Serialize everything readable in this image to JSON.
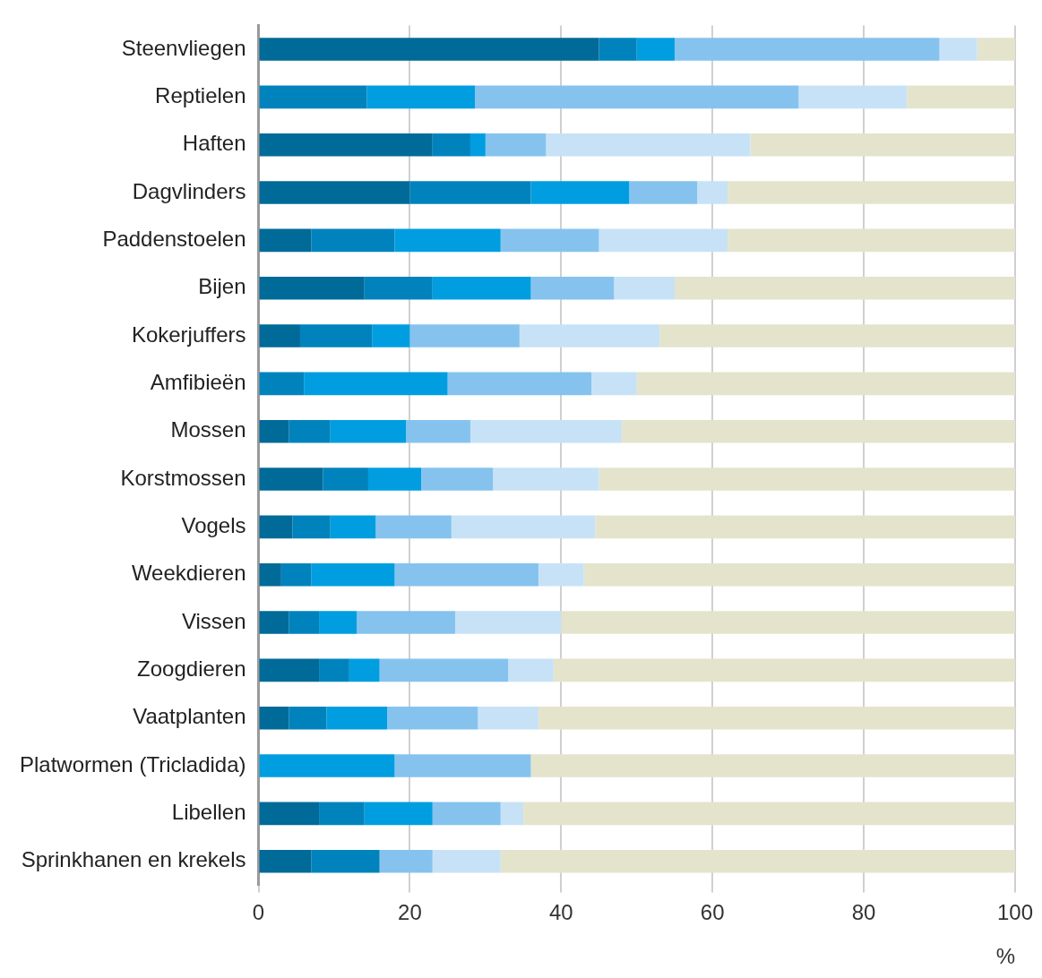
{
  "chart_data": {
    "type": "bar",
    "orientation": "horizontal",
    "stacked": true,
    "xlabel": "%",
    "categories": [
      "Steenvliegen",
      "Reptielen",
      "Haften",
      "Dagvlinders",
      "Paddenstoelen",
      "Bijen",
      "Kokerjuffers",
      "Amfibieën",
      "Mossen",
      "Korstmossen",
      "Vogels",
      "Weekdieren",
      "Vissen",
      "Zoogdieren",
      "Vaatplanten",
      "Platwormen (Tricladida)",
      "Libellen",
      "Sprinkhanen en krekels"
    ],
    "series": [
      {
        "color": "#006a99",
        "values": [
          45,
          0,
          23,
          20,
          7,
          14,
          5.5,
          0,
          4,
          8.5,
          4.5,
          3,
          4,
          8,
          4,
          0,
          8,
          7
        ]
      },
      {
        "color": "#0083bd",
        "values": [
          5,
          14.3,
          5,
          16,
          11,
          9,
          9.5,
          6,
          5.5,
          6,
          5,
          4,
          4,
          4,
          5,
          0,
          6,
          9
        ]
      },
      {
        "color": "#009ee0",
        "values": [
          5,
          14.3,
          2,
          13,
          14,
          13,
          5,
          19,
          10,
          7,
          6,
          11,
          5,
          4,
          8,
          18,
          9,
          0
        ]
      },
      {
        "color": "#85c3ee",
        "values": [
          35,
          42.8,
          8,
          9,
          13,
          11,
          14.5,
          19,
          8.5,
          9.5,
          10,
          19,
          13,
          17,
          12,
          18,
          9,
          7
        ]
      },
      {
        "color": "#c7e2f7",
        "values": [
          5,
          14.3,
          27,
          4,
          17,
          8,
          18.5,
          6,
          20,
          14,
          19,
          6,
          14,
          6,
          8,
          0,
          3,
          9
        ]
      },
      {
        "color": "#e4e4cc",
        "values": [
          5,
          14.3,
          35,
          38,
          38,
          45,
          47,
          50,
          52,
          55,
          55.5,
          57,
          60,
          61,
          63,
          64,
          65,
          68
        ]
      }
    ],
    "xlim": [
      0,
      100
    ],
    "xticks": [
      0,
      20,
      40,
      60,
      80,
      100
    ],
    "grid": "x",
    "legend": false
  }
}
